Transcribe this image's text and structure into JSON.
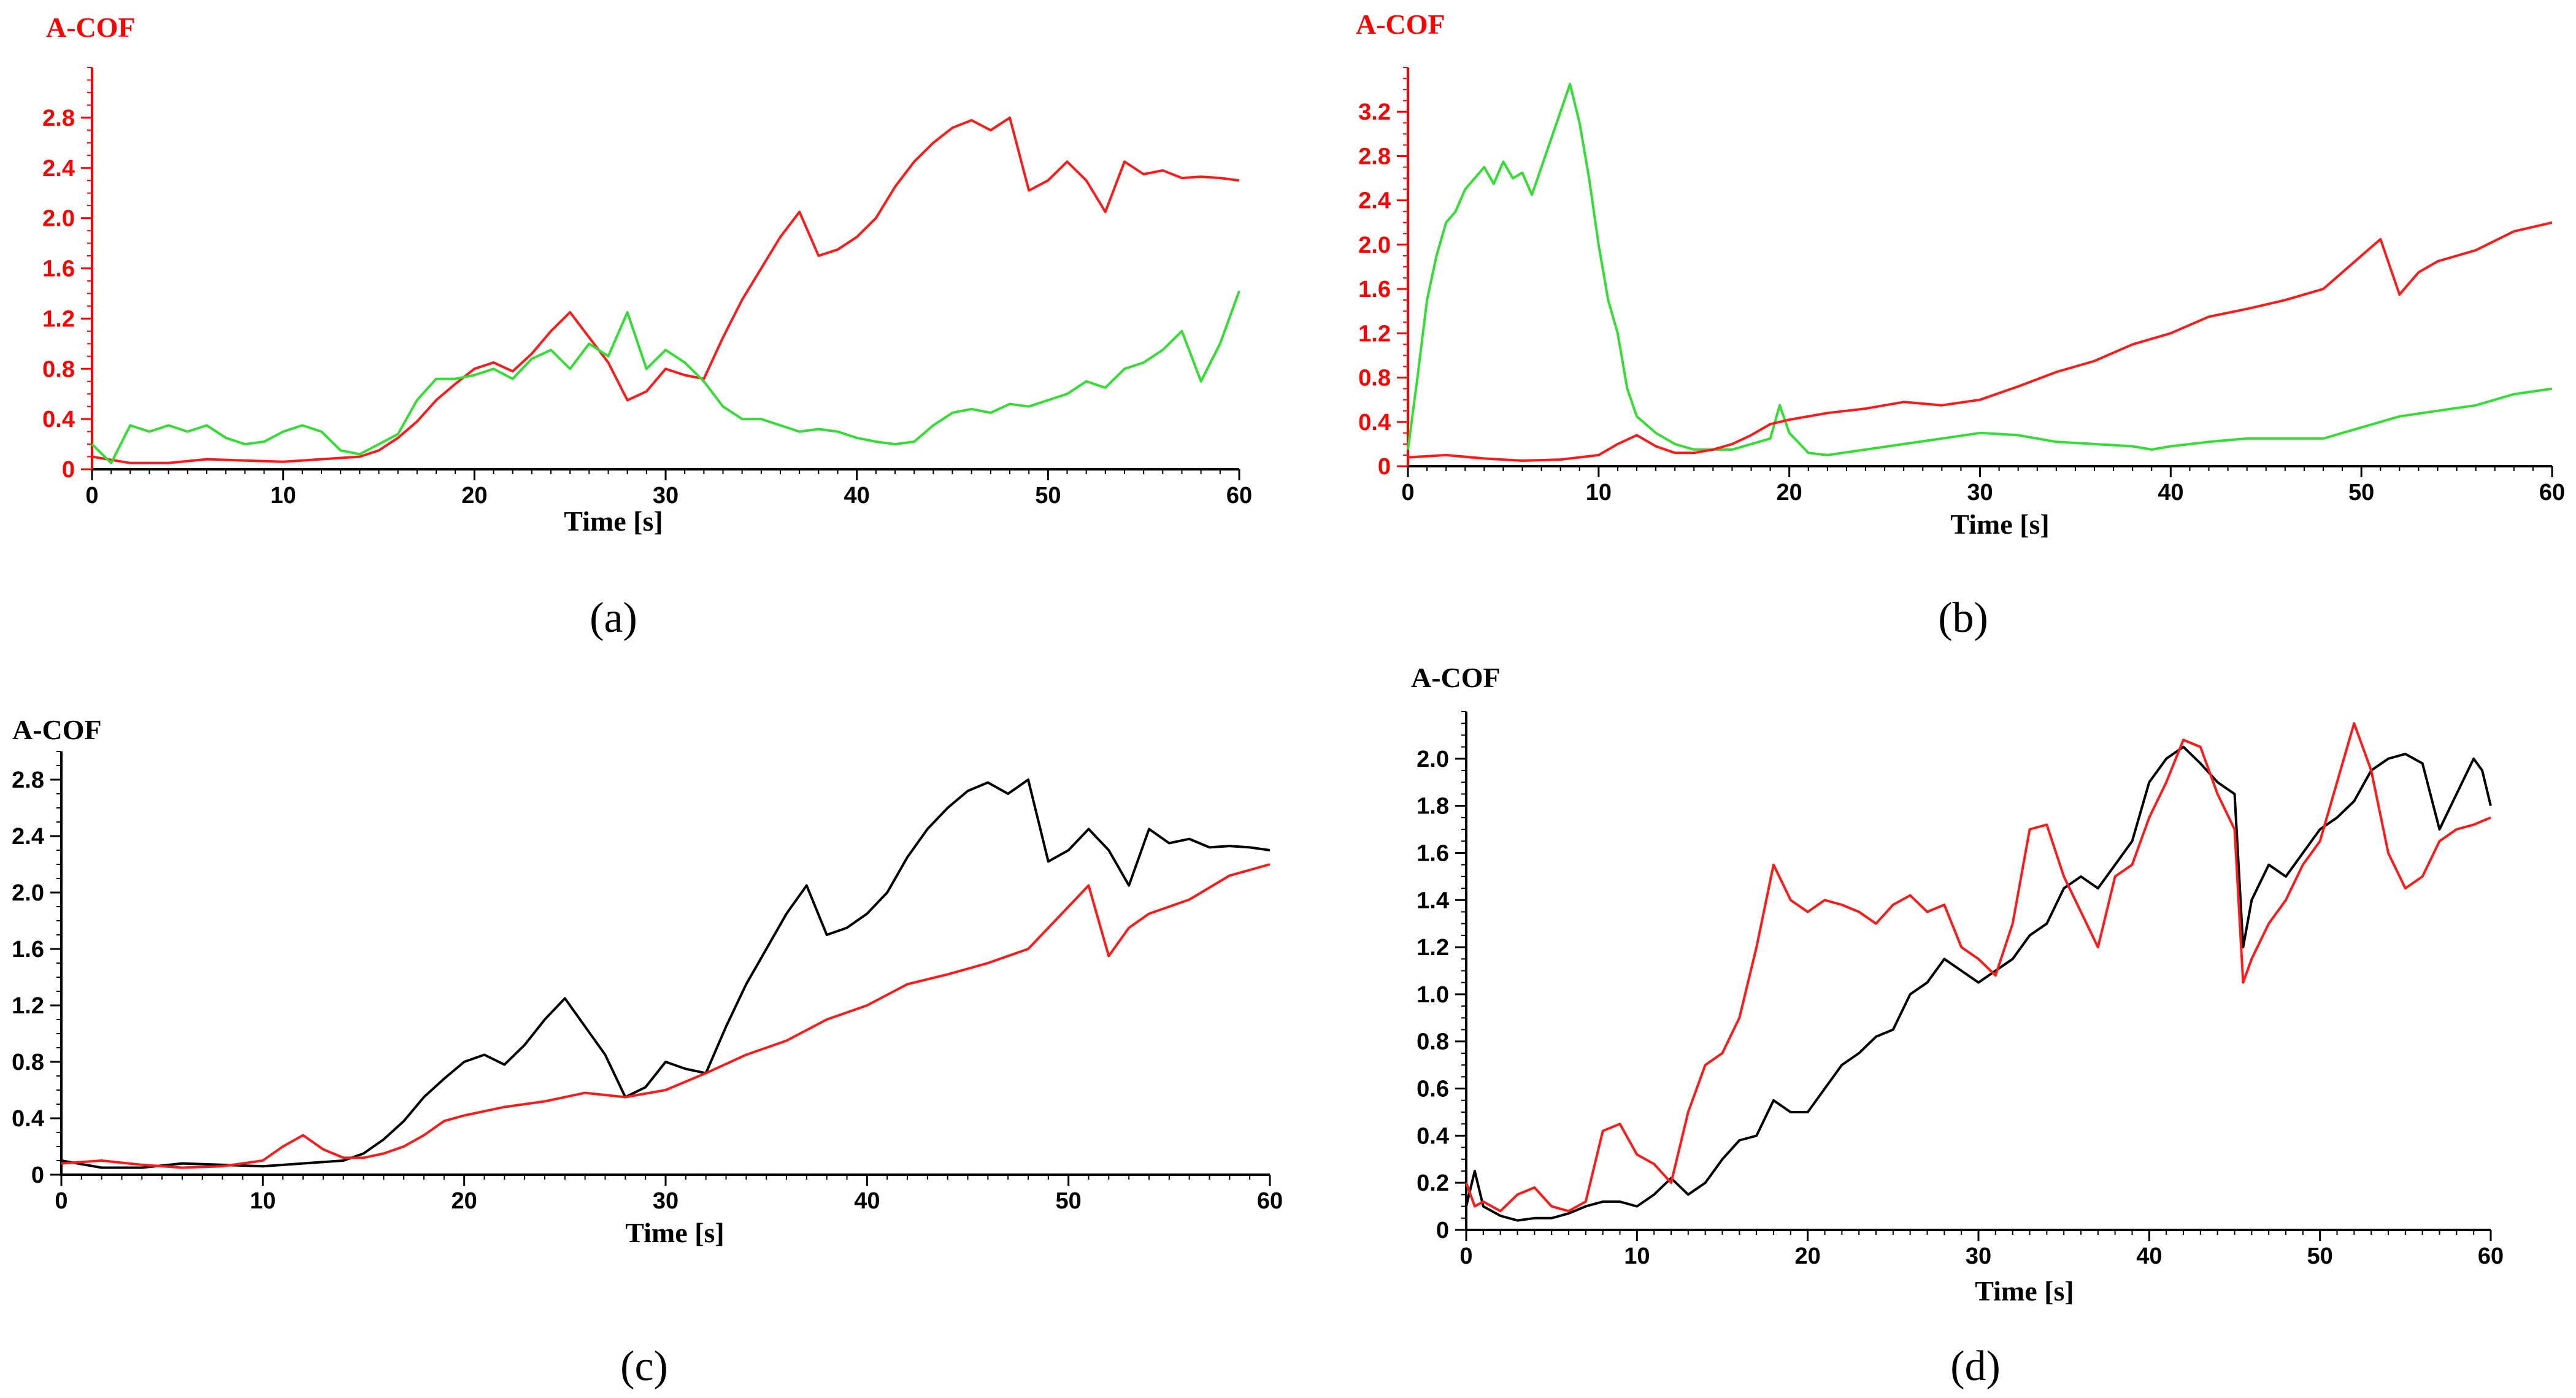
{
  "colors": {
    "red": "#ff1a1a",
    "green": "#33dd33",
    "black": "#000000",
    "axis_red": "#ff0000",
    "axis_black": "#000000"
  },
  "chart_data": [
    {
      "id": "a",
      "caption": "(a)",
      "type": "line",
      "title": "A-COF",
      "xlabel": "Time [s]",
      "ylabel": "A-COF",
      "xlim": [
        0,
        60
      ],
      "ylim": [
        0,
        3.2
      ],
      "axis_color": "red",
      "xticks": [
        0,
        10,
        20,
        30,
        40,
        50,
        60
      ],
      "yticks": [
        "0",
        "0.4",
        "0.8",
        "1.2",
        "1.6",
        "2.0",
        "2.4",
        "2.8"
      ],
      "series": [
        {
          "name": "red",
          "color": "red",
          "x": [
            0,
            2,
            4,
            6,
            8,
            10,
            12,
            14,
            15,
            16,
            17,
            18,
            19,
            20,
            21,
            22,
            23,
            24,
            25,
            26,
            27,
            28,
            29,
            30,
            31,
            32,
            33,
            34,
            35,
            36,
            37,
            38,
            39,
            40,
            41,
            42,
            43,
            44,
            45,
            46,
            47,
            48,
            49,
            50,
            51,
            52,
            53,
            54,
            55,
            56,
            57,
            58,
            59,
            60
          ],
          "y": [
            0.1,
            0.05,
            0.05,
            0.08,
            0.07,
            0.06,
            0.08,
            0.1,
            0.15,
            0.25,
            0.38,
            0.55,
            0.68,
            0.8,
            0.85,
            0.78,
            0.92,
            1.1,
            1.25,
            1.05,
            0.85,
            0.55,
            0.62,
            0.8,
            0.75,
            0.72,
            1.05,
            1.35,
            1.6,
            1.85,
            2.05,
            1.7,
            1.75,
            1.85,
            2.0,
            2.25,
            2.45,
            2.6,
            2.72,
            2.78,
            2.7,
            2.8,
            2.22,
            2.3,
            2.45,
            2.3,
            2.05,
            2.45,
            2.35,
            2.38,
            2.32,
            2.33,
            2.32,
            2.3
          ]
        },
        {
          "name": "green",
          "color": "green",
          "x": [
            0,
            1,
            2,
            3,
            4,
            5,
            6,
            7,
            8,
            9,
            10,
            11,
            12,
            13,
            14,
            15,
            16,
            17,
            18,
            19,
            20,
            21,
            22,
            23,
            24,
            25,
            26,
            27,
            28,
            29,
            30,
            31,
            32,
            33,
            34,
            35,
            36,
            37,
            38,
            39,
            40,
            41,
            42,
            43,
            44,
            45,
            46,
            47,
            48,
            49,
            50,
            51,
            52,
            53,
            54,
            55,
            56,
            57,
            58,
            59,
            60
          ],
          "y": [
            0.2,
            0.05,
            0.35,
            0.3,
            0.35,
            0.3,
            0.35,
            0.25,
            0.2,
            0.22,
            0.3,
            0.35,
            0.3,
            0.15,
            0.12,
            0.2,
            0.28,
            0.55,
            0.72,
            0.72,
            0.75,
            0.8,
            0.72,
            0.88,
            0.95,
            0.8,
            1.0,
            0.9,
            1.25,
            0.8,
            0.95,
            0.85,
            0.7,
            0.5,
            0.4,
            0.4,
            0.35,
            0.3,
            0.32,
            0.3,
            0.25,
            0.22,
            0.2,
            0.22,
            0.35,
            0.45,
            0.48,
            0.45,
            0.52,
            0.5,
            0.55,
            0.6,
            0.7,
            0.65,
            0.8,
            0.85,
            0.95,
            1.1,
            0.7,
            1.0,
            1.42
          ]
        }
      ]
    },
    {
      "id": "b",
      "caption": "(b)",
      "type": "line",
      "title": "A-COF",
      "xlabel": "Time [s]",
      "ylabel": "A-COF",
      "xlim": [
        0,
        60
      ],
      "ylim": [
        0,
        3.6
      ],
      "axis_color": "red",
      "xticks": [
        0,
        10,
        20,
        30,
        40,
        50,
        60
      ],
      "yticks": [
        "0",
        "0.4",
        "0.8",
        "1.2",
        "1.6",
        "2.0",
        "2.4",
        "2.8",
        "3.2"
      ],
      "series": [
        {
          "name": "green",
          "color": "green",
          "x": [
            0,
            0.5,
            1,
            1.5,
            2,
            2.5,
            3,
            3.5,
            4,
            4.5,
            5,
            5.5,
            6,
            6.5,
            7,
            7.5,
            8,
            8.5,
            9,
            9.5,
            10,
            10.5,
            11,
            11.5,
            12,
            13,
            14,
            15,
            16,
            17,
            18,
            19,
            19.5,
            20,
            21,
            22,
            24,
            26,
            28,
            30,
            32,
            34,
            36,
            38,
            39,
            40,
            42,
            44,
            46,
            48,
            50,
            52,
            54,
            56,
            58,
            60
          ],
          "y": [
            0.15,
            0.8,
            1.5,
            1.9,
            2.2,
            2.3,
            2.5,
            2.6,
            2.7,
            2.55,
            2.75,
            2.6,
            2.65,
            2.45,
            2.7,
            2.95,
            3.2,
            3.45,
            3.1,
            2.6,
            2.0,
            1.5,
            1.2,
            0.7,
            0.45,
            0.3,
            0.2,
            0.15,
            0.15,
            0.15,
            0.2,
            0.25,
            0.55,
            0.3,
            0.12,
            0.1,
            0.15,
            0.2,
            0.25,
            0.3,
            0.28,
            0.22,
            0.2,
            0.18,
            0.15,
            0.18,
            0.22,
            0.25,
            0.25,
            0.25,
            0.35,
            0.45,
            0.5,
            0.55,
            0.65,
            0.7
          ]
        },
        {
          "name": "red",
          "color": "red",
          "x": [
            0,
            2,
            4,
            6,
            8,
            10,
            11,
            12,
            13,
            14,
            15,
            16,
            17,
            18,
            19,
            20,
            22,
            24,
            26,
            28,
            30,
            32,
            34,
            36,
            38,
            40,
            42,
            44,
            46,
            48,
            50,
            51,
            52,
            53,
            54,
            56,
            58,
            60
          ],
          "y": [
            0.08,
            0.1,
            0.07,
            0.05,
            0.06,
            0.1,
            0.2,
            0.28,
            0.18,
            0.12,
            0.12,
            0.15,
            0.2,
            0.28,
            0.38,
            0.42,
            0.48,
            0.52,
            0.58,
            0.55,
            0.6,
            0.72,
            0.85,
            0.95,
            1.1,
            1.2,
            1.35,
            1.42,
            1.5,
            1.6,
            1.9,
            2.05,
            1.55,
            1.75,
            1.85,
            1.95,
            2.12,
            2.2
          ]
        }
      ]
    },
    {
      "id": "c",
      "caption": "(c)",
      "type": "line",
      "title": "A-COF",
      "xlabel": "Time [s]",
      "ylabel": "A-COF",
      "xlim": [
        0,
        60
      ],
      "ylim": [
        0,
        3.0
      ],
      "axis_color": "black",
      "xticks": [
        0,
        10,
        20,
        30,
        40,
        50,
        60
      ],
      "yticks": [
        "0",
        "0.4",
        "0.8",
        "1.2",
        "1.6",
        "2.0",
        "2.4",
        "2.8"
      ],
      "series": [
        {
          "name": "black",
          "color": "black",
          "x": [
            0,
            2,
            4,
            6,
            8,
            10,
            12,
            14,
            15,
            16,
            17,
            18,
            19,
            20,
            21,
            22,
            23,
            24,
            25,
            26,
            27,
            28,
            29,
            30,
            31,
            32,
            33,
            34,
            35,
            36,
            37,
            38,
            39,
            40,
            41,
            42,
            43,
            44,
            45,
            46,
            47,
            48,
            49,
            50,
            51,
            52,
            53,
            54,
            55,
            56,
            57,
            58,
            59,
            60
          ],
          "y": [
            0.1,
            0.05,
            0.05,
            0.08,
            0.07,
            0.06,
            0.08,
            0.1,
            0.15,
            0.25,
            0.38,
            0.55,
            0.68,
            0.8,
            0.85,
            0.78,
            0.92,
            1.1,
            1.25,
            1.05,
            0.85,
            0.55,
            0.62,
            0.8,
            0.75,
            0.72,
            1.05,
            1.35,
            1.6,
            1.85,
            2.05,
            1.7,
            1.75,
            1.85,
            2.0,
            2.25,
            2.45,
            2.6,
            2.72,
            2.78,
            2.7,
            2.8,
            2.22,
            2.3,
            2.45,
            2.3,
            2.05,
            2.45,
            2.35,
            2.38,
            2.32,
            2.33,
            2.32,
            2.3
          ]
        },
        {
          "name": "red",
          "color": "red",
          "x": [
            0,
            2,
            4,
            6,
            8,
            10,
            11,
            12,
            13,
            14,
            15,
            16,
            17,
            18,
            19,
            20,
            22,
            24,
            26,
            28,
            30,
            32,
            34,
            36,
            38,
            40,
            42,
            44,
            46,
            48,
            50,
            51,
            52,
            53,
            54,
            56,
            58,
            60
          ],
          "y": [
            0.08,
            0.1,
            0.07,
            0.05,
            0.06,
            0.1,
            0.2,
            0.28,
            0.18,
            0.12,
            0.12,
            0.15,
            0.2,
            0.28,
            0.38,
            0.42,
            0.48,
            0.52,
            0.58,
            0.55,
            0.6,
            0.72,
            0.85,
            0.95,
            1.1,
            1.2,
            1.35,
            1.42,
            1.5,
            1.6,
            1.9,
            2.05,
            1.55,
            1.75,
            1.85,
            1.95,
            2.12,
            2.2
          ]
        }
      ]
    },
    {
      "id": "d",
      "caption": "(d)",
      "type": "line",
      "title": "A-COF",
      "xlabel": "Time [s]",
      "ylabel": "A-COF",
      "xlim": [
        0,
        60
      ],
      "ylim": [
        0,
        2.2
      ],
      "axis_color": "black",
      "xticks": [
        0,
        10,
        20,
        30,
        40,
        50,
        60
      ],
      "yticks": [
        "0",
        "0.2",
        "0.4",
        "0.6",
        "0.8",
        "1.0",
        "1.2",
        "1.4",
        "1.6",
        "1.8",
        "2.0"
      ],
      "series": [
        {
          "name": "black",
          "color": "black",
          "x": [
            0,
            0.5,
            1,
            2,
            3,
            4,
            5,
            6,
            7,
            8,
            9,
            10,
            11,
            12,
            13,
            14,
            15,
            16,
            17,
            18,
            19,
            20,
            21,
            22,
            23,
            24,
            25,
            26,
            27,
            28,
            29,
            30,
            31,
            32,
            33,
            34,
            35,
            36,
            37,
            38,
            39,
            40,
            41,
            42,
            43,
            44,
            45,
            45.5,
            46,
            47,
            48,
            49,
            50,
            51,
            52,
            53,
            54,
            55,
            56,
            57,
            58,
            59,
            59.5,
            60
          ],
          "y": [
            0.1,
            0.25,
            0.1,
            0.06,
            0.04,
            0.05,
            0.05,
            0.07,
            0.1,
            0.12,
            0.12,
            0.1,
            0.15,
            0.22,
            0.15,
            0.2,
            0.3,
            0.38,
            0.4,
            0.55,
            0.5,
            0.5,
            0.6,
            0.7,
            0.75,
            0.82,
            0.85,
            1.0,
            1.05,
            1.15,
            1.1,
            1.05,
            1.1,
            1.15,
            1.25,
            1.3,
            1.45,
            1.5,
            1.45,
            1.55,
            1.65,
            1.9,
            2.0,
            2.05,
            1.98,
            1.9,
            1.85,
            1.2,
            1.4,
            1.55,
            1.5,
            1.6,
            1.7,
            1.75,
            1.82,
            1.95,
            2.0,
            2.02,
            1.98,
            1.7,
            1.85,
            2.0,
            1.95,
            1.8
          ]
        },
        {
          "name": "red",
          "color": "red",
          "x": [
            0,
            0.5,
            1,
            2,
            3,
            4,
            5,
            6,
            7,
            8,
            9,
            10,
            11,
            12,
            13,
            14,
            15,
            16,
            17,
            18,
            19,
            20,
            21,
            22,
            23,
            24,
            25,
            26,
            27,
            28,
            29,
            30,
            31,
            32,
            33,
            34,
            35,
            36,
            37,
            38,
            39,
            40,
            41,
            42,
            43,
            44,
            45,
            45.5,
            46,
            47,
            48,
            49,
            50,
            51,
            52,
            53,
            54,
            55,
            56,
            57,
            58,
            59,
            60
          ],
          "y": [
            0.2,
            0.1,
            0.12,
            0.08,
            0.15,
            0.18,
            0.1,
            0.08,
            0.12,
            0.42,
            0.45,
            0.32,
            0.28,
            0.2,
            0.5,
            0.7,
            0.75,
            0.9,
            1.2,
            1.55,
            1.4,
            1.35,
            1.4,
            1.38,
            1.35,
            1.3,
            1.38,
            1.42,
            1.35,
            1.38,
            1.2,
            1.15,
            1.08,
            1.3,
            1.7,
            1.72,
            1.5,
            1.35,
            1.2,
            1.5,
            1.55,
            1.75,
            1.9,
            2.08,
            2.05,
            1.85,
            1.7,
            1.05,
            1.15,
            1.3,
            1.4,
            1.55,
            1.65,
            1.9,
            2.15,
            1.95,
            1.6,
            1.45,
            1.5,
            1.65,
            1.7,
            1.72,
            1.75
          ]
        }
      ]
    }
  ]
}
